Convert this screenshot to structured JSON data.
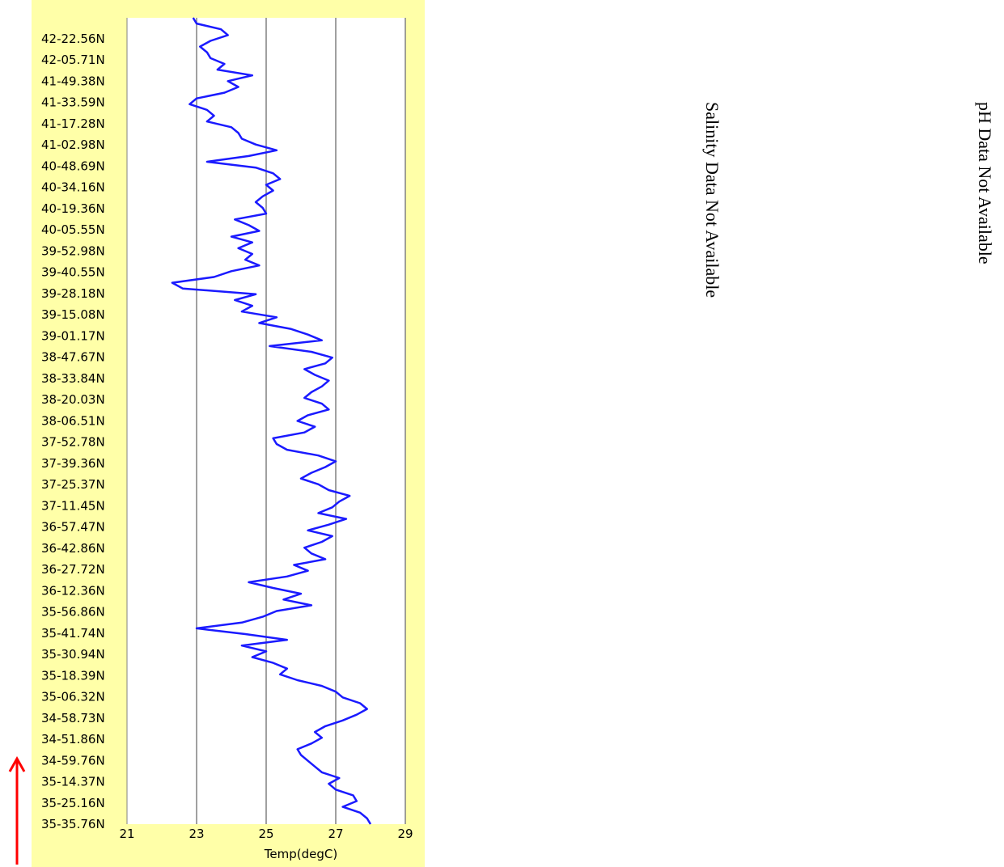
{
  "chart_data": {
    "type": "line",
    "orientation": "vertical-profile",
    "xlabel": "Temp(degC)",
    "x_ticks": [
      21,
      23,
      25,
      27,
      29
    ],
    "xlim": [
      21,
      29
    ],
    "y_tick_labels": [
      "42-22.56N",
      "42-05.71N",
      "41-49.38N",
      "41-33.59N",
      "41-17.28N",
      "41-02.98N",
      "40-48.69N",
      "40-34.16N",
      "40-19.36N",
      "40-05.55N",
      "39-52.98N",
      "39-40.55N",
      "39-28.18N",
      "39-15.08N",
      "39-01.17N",
      "38-47.67N",
      "38-33.84N",
      "38-20.03N",
      "38-06.51N",
      "37-52.78N",
      "37-39.36N",
      "37-25.37N",
      "37-11.45N",
      "36-57.47N",
      "36-42.86N",
      "36-27.72N",
      "36-12.36N",
      "35-56.86N",
      "35-41.74N",
      "35-30.94N",
      "35-18.39N",
      "35-06.32N",
      "34-58.73N",
      "34-51.86N",
      "34-59.76N",
      "35-14.37N",
      "35-25.16N",
      "35-35.76N"
    ],
    "grid": "vertical",
    "series_color": "#1a1aff",
    "series": [
      {
        "values": [
          28.0,
          27.9,
          27.7,
          27.2,
          27.6,
          27.5,
          27.0,
          26.8,
          27.1,
          26.6,
          26.4,
          26.2,
          26.0,
          25.9,
          26.3,
          26.6,
          26.4,
          26.7,
          27.2,
          27.6,
          27.9,
          27.7,
          27.2,
          27.0,
          26.6,
          25.9,
          25.4,
          25.6,
          25.2,
          24.6,
          25.0,
          24.3,
          25.6,
          24.4,
          23.0,
          24.3,
          24.9,
          25.3,
          26.3,
          25.5,
          26.0,
          25.2,
          24.5,
          25.6,
          26.2,
          25.8,
          26.7,
          26.3,
          26.1,
          26.6,
          26.9,
          26.2,
          26.8,
          27.3,
          26.5,
          26.9,
          27.1,
          27.4,
          26.8,
          26.5,
          26.0,
          26.3,
          26.7,
          27.0,
          26.5,
          25.6,
          25.3,
          25.2,
          26.1,
          26.4,
          25.9,
          26.2,
          26.8,
          26.6,
          26.1,
          26.3,
          26.6,
          26.8,
          26.4,
          26.1,
          26.7,
          26.9,
          26.3,
          25.1,
          26.6,
          26.2,
          25.7,
          24.8,
          25.3,
          24.3,
          24.6,
          24.1,
          24.7,
          22.6,
          22.3,
          23.5,
          24.0,
          24.8,
          24.4,
          24.6,
          24.2,
          24.6,
          24.0,
          24.8,
          24.5,
          24.1,
          25.0,
          24.9,
          24.7,
          24.9,
          25.2,
          25.0,
          25.4,
          25.2,
          24.7,
          23.3,
          24.5,
          25.3,
          24.7,
          24.3,
          24.2,
          24.0,
          23.3,
          23.5,
          23.3,
          22.8,
          23.0,
          23.8,
          24.2,
          23.9,
          24.6,
          23.6,
          23.8,
          23.4,
          23.3,
          23.1,
          23.4,
          23.9,
          23.7,
          23.0,
          22.9
        ]
      }
    ]
  },
  "notes": {
    "salinity": "Salinity Data Not Available",
    "ph": "pH Data Not Available"
  },
  "colors": {
    "panel_bg": "#ffffa8",
    "plot_bg": "#ffffff",
    "arrow": "#ff0000",
    "grid": "#808080"
  }
}
